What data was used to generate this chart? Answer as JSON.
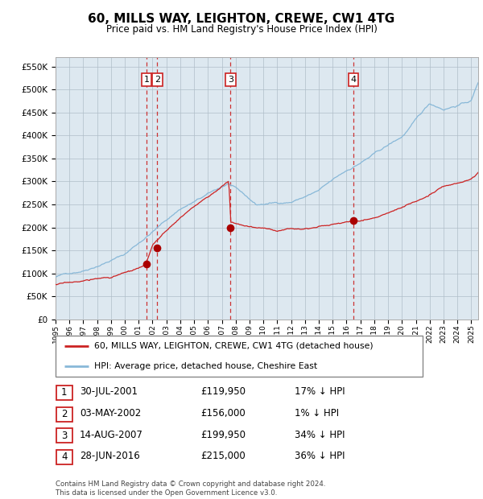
{
  "title": "60, MILLS WAY, LEIGHTON, CREWE, CW1 4TG",
  "subtitle": "Price paid vs. HM Land Registry's House Price Index (HPI)",
  "yticks": [
    0,
    50000,
    100000,
    150000,
    200000,
    250000,
    300000,
    350000,
    400000,
    450000,
    500000,
    550000
  ],
  "ylim": [
    0,
    570000
  ],
  "background_color": "#ffffff",
  "plot_bg_color": "#dde8f0",
  "grid_color": "#b0bec8",
  "hpi_line_color": "#88b8d8",
  "price_line_color": "#cc2222",
  "sale_marker_color": "#aa0000",
  "vline_color": "#cc3333",
  "sale_points": [
    {
      "date_num": 2001.57,
      "price": 119950,
      "label": "1"
    },
    {
      "date_num": 2002.34,
      "price": 156000,
      "label": "2"
    },
    {
      "date_num": 2007.62,
      "price": 199950,
      "label": "3"
    },
    {
      "date_num": 2016.49,
      "price": 215000,
      "label": "4"
    }
  ],
  "legend_entries": [
    {
      "label": "60, MILLS WAY, LEIGHTON, CREWE, CW1 4TG (detached house)",
      "color": "#cc2222"
    },
    {
      "label": "HPI: Average price, detached house, Cheshire East",
      "color": "#88b8d8"
    }
  ],
  "table_rows": [
    {
      "num": "1",
      "date": "30-JUL-2001",
      "price": "£119,950",
      "hpi": "17% ↓ HPI"
    },
    {
      "num": "2",
      "date": "03-MAY-2002",
      "price": "£156,000",
      "hpi": "1% ↓ HPI"
    },
    {
      "num": "3",
      "date": "14-AUG-2007",
      "price": "£199,950",
      "hpi": "34% ↓ HPI"
    },
    {
      "num": "4",
      "date": "28-JUN-2016",
      "price": "£215,000",
      "hpi": "36% ↓ HPI"
    }
  ],
  "footnote": "Contains HM Land Registry data © Crown copyright and database right 2024.\nThis data is licensed under the Open Government Licence v3.0.",
  "xstart": 1995.0,
  "xend": 2025.5
}
